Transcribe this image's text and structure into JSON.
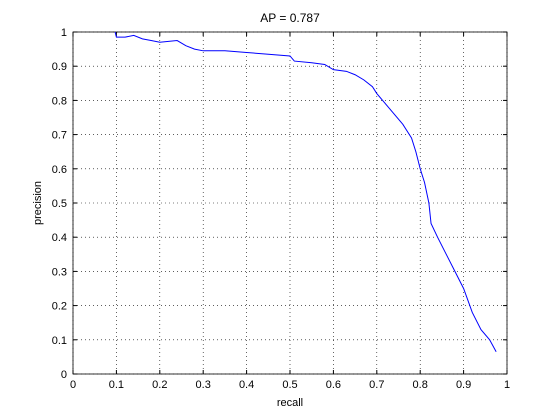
{
  "chart_data": {
    "type": "line",
    "title": "AP = 0.787",
    "x_label": "recall",
    "y_label": "precision",
    "series": [
      {
        "color": "#0000ff",
        "x": [
          0.097,
          0.1,
          0.12,
          0.14,
          0.16,
          0.18,
          0.2,
          0.24,
          0.26,
          0.28,
          0.3,
          0.35,
          0.4,
          0.45,
          0.5,
          0.51,
          0.55,
          0.58,
          0.6,
          0.63,
          0.65,
          0.67,
          0.69,
          0.7,
          0.72,
          0.74,
          0.76,
          0.78,
          0.79,
          0.8,
          0.81,
          0.82,
          0.825,
          0.84,
          0.86,
          0.88,
          0.9,
          0.92,
          0.94,
          0.96,
          0.975
        ],
        "values": [
          1.0,
          0.985,
          0.985,
          0.99,
          0.98,
          0.975,
          0.97,
          0.975,
          0.96,
          0.95,
          0.945,
          0.945,
          0.94,
          0.935,
          0.93,
          0.915,
          0.91,
          0.905,
          0.89,
          0.885,
          0.875,
          0.86,
          0.84,
          0.82,
          0.79,
          0.76,
          0.73,
          0.69,
          0.65,
          0.6,
          0.56,
          0.5,
          0.44,
          0.4,
          0.35,
          0.3,
          0.25,
          0.18,
          0.13,
          0.1,
          0.065
        ]
      }
    ],
    "xlim": [
      0,
      1
    ],
    "ylim": [
      0,
      1
    ],
    "xticks": [
      0,
      0.1,
      0.2,
      0.3,
      0.4,
      0.5,
      0.6,
      0.7,
      0.8,
      0.9,
      1
    ],
    "yticks": [
      0,
      0.1,
      0.2,
      0.3,
      0.4,
      0.5,
      0.6,
      0.7,
      0.8,
      0.9,
      1
    ],
    "grid": true
  }
}
